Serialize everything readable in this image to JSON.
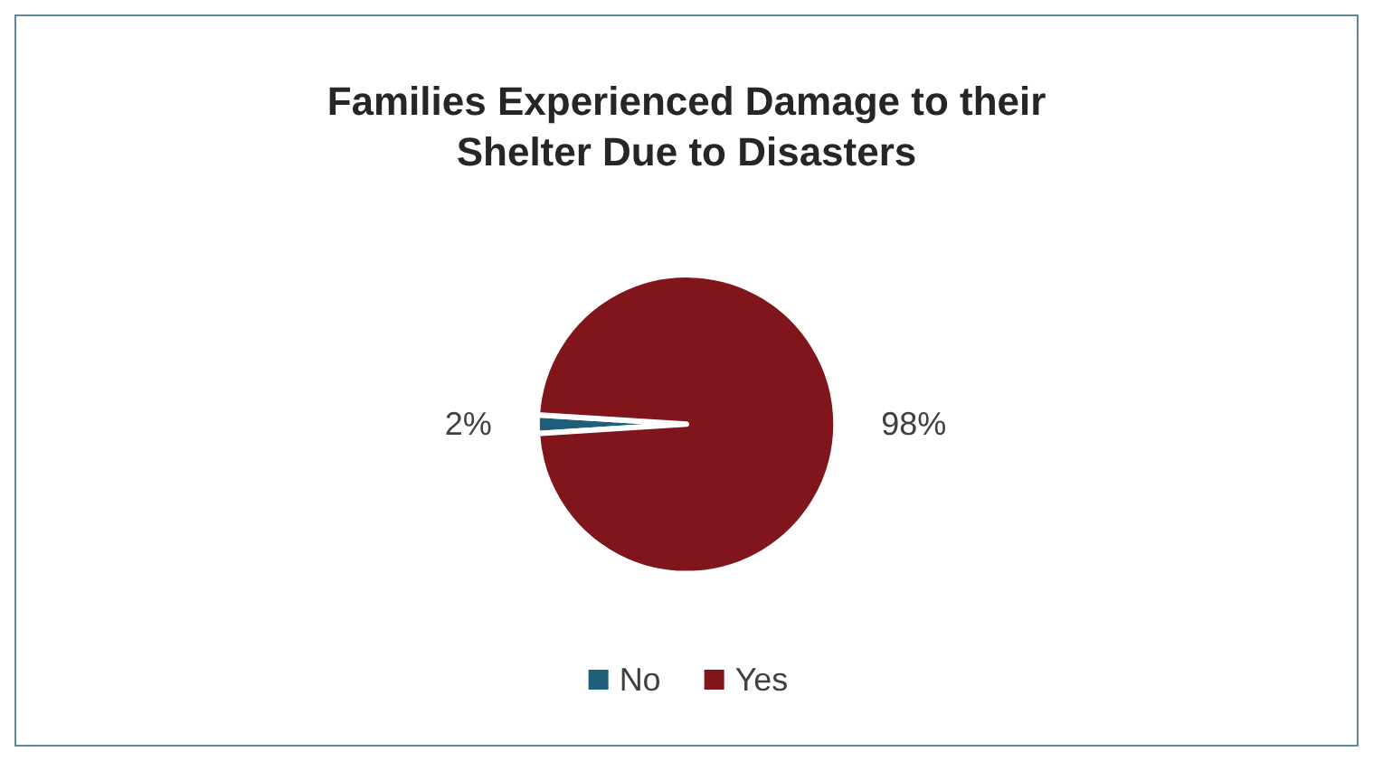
{
  "chart_data": {
    "type": "pie",
    "title": "Families Experienced Damage to their\nShelter Due to Disasters",
    "categories": [
      "No",
      "Yes"
    ],
    "values": [
      2,
      98
    ],
    "colors": [
      "#1f5f7a",
      "#80161b"
    ],
    "value_labels": [
      "2%",
      "98%"
    ],
    "legend": "bottom"
  }
}
